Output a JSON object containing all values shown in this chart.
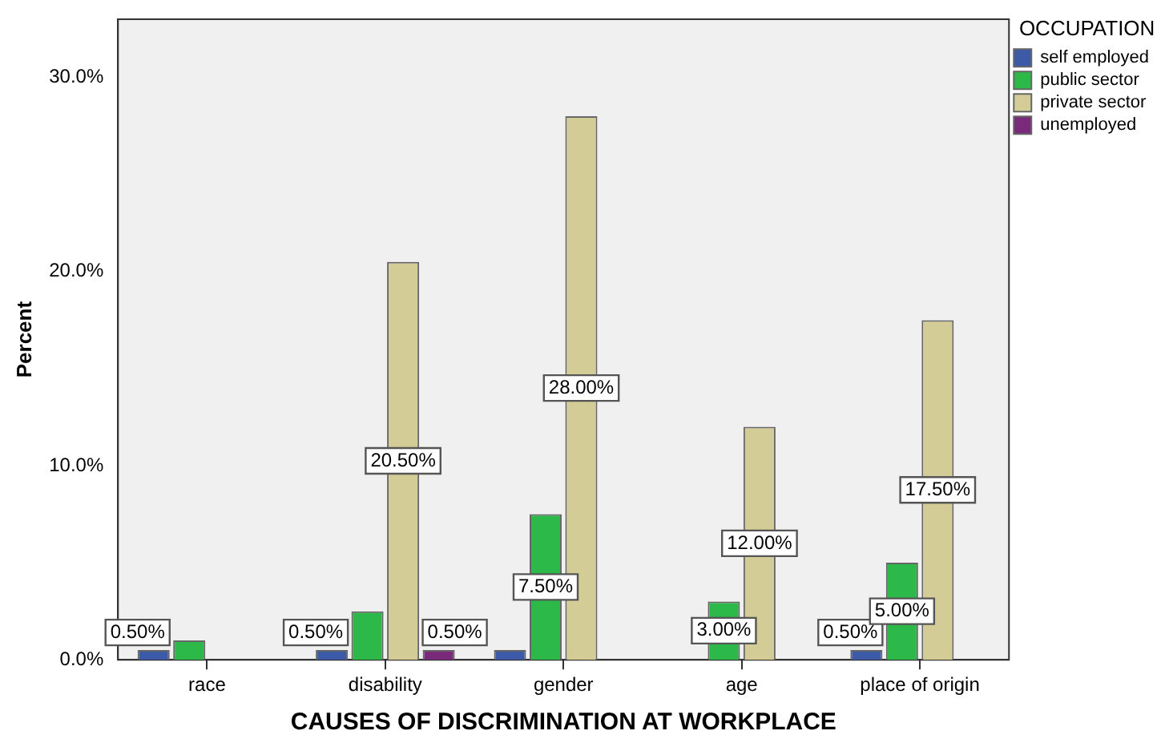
{
  "chart_data": {
    "type": "bar",
    "xlabel": "CAUSES OF DISCRIMINATION AT WORKPLACE",
    "ylabel": "Percent",
    "legend_title": "OCCUPATION",
    "legend": "right",
    "categories": [
      "race",
      "disability",
      "gender",
      "age",
      "place of origin"
    ],
    "series": [
      {
        "name": "self employed",
        "color": "#3c5aa8",
        "values": [
          0.5,
          0.5,
          0.5,
          null,
          0.5
        ],
        "value_labels": [
          "0.50%",
          "0.50%",
          null,
          null,
          "0.50%"
        ]
      },
      {
        "name": "public sector",
        "color": "#2db84a",
        "values": [
          1.0,
          2.5,
          7.5,
          3.0,
          5.0
        ],
        "value_labels": [
          null,
          null,
          "7.50%",
          "3.00%",
          "5.00%"
        ]
      },
      {
        "name": "private sector",
        "color": "#d4cc96",
        "values": [
          null,
          20.5,
          28.0,
          12.0,
          17.5
        ],
        "value_labels": [
          null,
          "20.50%",
          "28.00%",
          "12.00%",
          "17.50%"
        ]
      },
      {
        "name": "unemployed",
        "color": "#7a2a7a",
        "values": [
          null,
          0.5,
          null,
          null,
          null
        ],
        "value_labels": [
          null,
          "0.50%",
          null,
          null,
          null
        ]
      }
    ],
    "ylim": [
      0,
      33
    ],
    "yticks": [
      {
        "value": 0,
        "label": "0.0%"
      },
      {
        "value": 10,
        "label": "10.0%"
      },
      {
        "value": 20,
        "label": "20.0%"
      },
      {
        "value": 30,
        "label": "30.0%"
      }
    ],
    "grid": false
  }
}
